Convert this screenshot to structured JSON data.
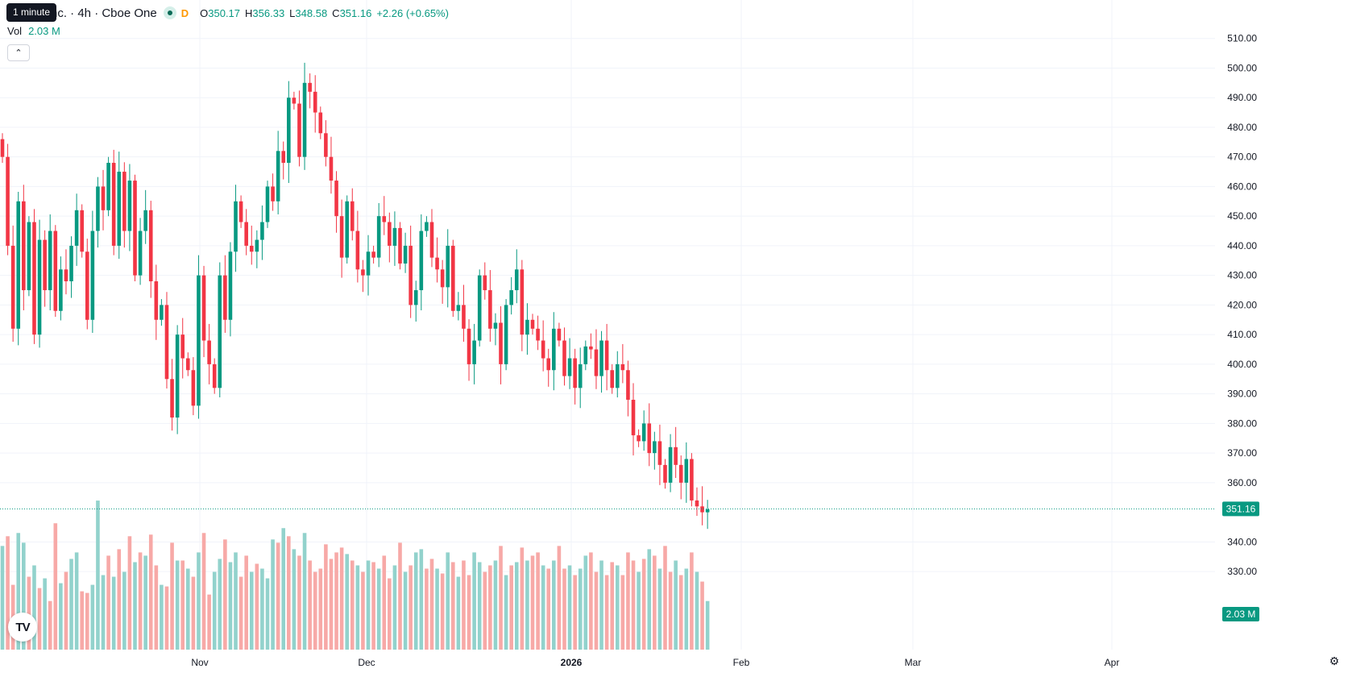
{
  "tooltip": {
    "text": "1 minute"
  },
  "legend": {
    "title": "nc. · 4h · Cboe One",
    "delay_badge": "D",
    "open_label": "O",
    "open": "350.17",
    "high_label": "H",
    "high": "356.33",
    "low_label": "L",
    "low": "348.58",
    "close_label": "C",
    "close": "351.16",
    "change": "+2.26 (+0.65%)"
  },
  "volume_legend": {
    "label": "Vol",
    "value": "2.03 M"
  },
  "icons": {
    "collapse": "chevron-up-icon",
    "logo": "tradingview-logo-icon",
    "settings": "gear-icon"
  },
  "colors": {
    "up": "#089981",
    "down": "#f23645",
    "up_volume": "#92d2cc",
    "down_volume": "#f7a9a7",
    "grid": "#f0f3fa",
    "text": "#131722",
    "price_line": "#089981"
  },
  "chart_data": {
    "type": "candlestick",
    "interval": "4h",
    "x_tick_labels": [
      "Nov",
      "Dec",
      "2026",
      "Feb",
      "Mar",
      "Apr"
    ],
    "y_ticks": [
      510,
      500,
      490,
      480,
      470,
      460,
      450,
      440,
      430,
      420,
      410,
      400,
      390,
      380,
      370,
      360,
      340,
      330
    ],
    "y_tick_labels": [
      "510.00",
      "500.00",
      "490.00",
      "480.00",
      "470.00",
      "460.00",
      "450.00",
      "440.00",
      "430.00",
      "420.00",
      "410.00",
      "400.00",
      "390.00",
      "380.00",
      "370.00",
      "360.00",
      "340.00",
      "330.00"
    ],
    "ylim": [
      323.5,
      514
    ],
    "last_price": 351.16,
    "last_price_label": "351.16",
    "last_volume_label": "2.03 M",
    "grid": true,
    "path": [
      470,
      440,
      412,
      455,
      425,
      448,
      410,
      442,
      425,
      445,
      418,
      432,
      428,
      440,
      452,
      438,
      415,
      445,
      460,
      452,
      468,
      440,
      465,
      445,
      462,
      430,
      445,
      452,
      428,
      415,
      420,
      395,
      382,
      410,
      402,
      398,
      386,
      430,
      408,
      400,
      392,
      430,
      415,
      438,
      455,
      448,
      440,
      438,
      442,
      448,
      460,
      455,
      472,
      468,
      490,
      488,
      470,
      495,
      492,
      485,
      478,
      470,
      462,
      450,
      436,
      455,
      445,
      432,
      430,
      438,
      436,
      450,
      448,
      440,
      446,
      434,
      440,
      420,
      425,
      445,
      448,
      436,
      432,
      426,
      440,
      418,
      420,
      412,
      400,
      408,
      430,
      425,
      412,
      414,
      400,
      420,
      425,
      432,
      410,
      415,
      412,
      408,
      402,
      398,
      412,
      408,
      396,
      402,
      392,
      400,
      406,
      405,
      396,
      408,
      398,
      392,
      400,
      398,
      388,
      376,
      374,
      380,
      370,
      374,
      366,
      360,
      372,
      366,
      360,
      368,
      354,
      352,
      350,
      351
    ],
    "volume": {
      "scale_max": 100,
      "values": [
        64,
        70,
        40,
        72,
        66,
        45,
        52,
        38,
        44,
        30,
        78,
        41,
        48,
        56,
        60,
        36,
        35,
        40,
        92,
        46,
        58,
        45,
        62,
        48,
        70,
        54,
        60,
        58,
        71,
        52,
        40,
        39,
        66,
        55,
        55,
        50,
        45,
        60,
        72,
        34,
        48,
        56,
        68,
        54,
        60,
        45,
        58,
        48,
        53,
        50,
        44,
        68,
        66,
        75,
        70,
        62,
        58,
        72,
        55,
        48,
        50,
        65,
        56,
        60,
        63,
        59,
        55,
        52,
        48,
        55,
        54,
        50,
        58,
        44,
        52,
        66,
        48,
        52,
        60,
        62,
        50,
        56,
        50,
        47,
        60,
        54,
        45,
        55,
        46,
        60,
        54,
        48,
        52,
        55,
        64,
        46,
        52,
        54,
        63,
        55,
        58,
        60,
        52,
        50,
        55,
        64,
        50,
        52,
        46,
        50,
        58,
        60,
        48,
        55,
        46,
        54,
        52,
        46,
        60,
        55,
        48,
        56,
        62,
        58,
        50,
        64,
        48,
        55,
        46,
        50,
        60,
        48,
        42,
        30
      ],
      "up": [
        true,
        false,
        false,
        true,
        true,
        false,
        true,
        false,
        true,
        false,
        false,
        true,
        false,
        true,
        true,
        false,
        false,
        true,
        true,
        true,
        false,
        true,
        false,
        true,
        false,
        true,
        false,
        true,
        false,
        false,
        true,
        false,
        false,
        true,
        false,
        true,
        false,
        true,
        false,
        false,
        true,
        true,
        false,
        true,
        true,
        false,
        false,
        true,
        false,
        true,
        true,
        true,
        false,
        true,
        false,
        true,
        false,
        true,
        false,
        false,
        false,
        false,
        false,
        false,
        false,
        true,
        false,
        true,
        false,
        true,
        false,
        true,
        false,
        false,
        true,
        false,
        true,
        false,
        true,
        true,
        false,
        false,
        true,
        false,
        true,
        false,
        true,
        false,
        false,
        true,
        true,
        false,
        false,
        true,
        false,
        true,
        false,
        true,
        false,
        true,
        false,
        false,
        true,
        false,
        true,
        false,
        false,
        true,
        false,
        true,
        true,
        false,
        false,
        true,
        false,
        false,
        true,
        false,
        false,
        false,
        true,
        false,
        true,
        false,
        true,
        false,
        false,
        true,
        false,
        true,
        false,
        true,
        false,
        true
      ]
    }
  }
}
